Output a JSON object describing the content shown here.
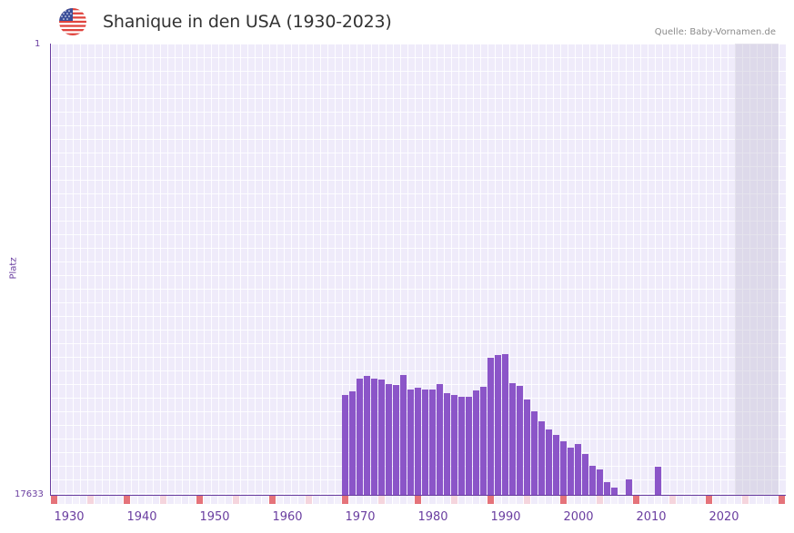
{
  "header": {
    "title": "Shanique in den USA (1930-2023)",
    "source": "Quelle: Baby-Vornamen.de",
    "flag_icon": "us-flag-icon"
  },
  "axis": {
    "y_title": "Platz",
    "y_top_label": "1",
    "y_bottom_label": "17633",
    "x_ticks": [
      "1930",
      "1940",
      "1950",
      "1960",
      "1970",
      "1980",
      "1990",
      "2000",
      "2010",
      "2020"
    ]
  },
  "colors": {
    "bar": "#8b55c8",
    "axis": "#6a3ea0",
    "marker_decade": "#e5737a",
    "marker_half": "#f5d5dd",
    "grid_bg": "#efebfa",
    "shade": "#e0dcea"
  },
  "chart_data": {
    "type": "bar",
    "title": "Shanique in den USA (1930-2023)",
    "xlabel": "",
    "ylabel": "Platz",
    "ylim": [
      17633,
      1
    ],
    "y_inverted": true,
    "x_range": [
      1928,
      2028
    ],
    "shaded_region_years": [
      2022,
      2028
    ],
    "categories": [
      1968,
      1969,
      1970,
      1971,
      1972,
      1973,
      1974,
      1975,
      1976,
      1977,
      1978,
      1979,
      1980,
      1981,
      1982,
      1983,
      1984,
      1985,
      1986,
      1987,
      1988,
      1989,
      1990,
      1991,
      1992,
      1993,
      1994,
      1995,
      1996,
      1997,
      1998,
      1999,
      2000,
      2001,
      2002,
      2003,
      2004,
      2005,
      2007,
      2011
    ],
    "values": [
      13740,
      13600,
      13100,
      12990,
      13100,
      13140,
      13320,
      13350,
      12960,
      13530,
      13460,
      13500,
      13530,
      13320,
      13670,
      13740,
      13810,
      13810,
      13560,
      13420,
      12290,
      12180,
      12150,
      13280,
      13390,
      13920,
      14380,
      14770,
      15090,
      15300,
      15550,
      15800,
      15660,
      16050,
      16510,
      16650,
      17140,
      17350,
      17040,
      16540
    ]
  }
}
